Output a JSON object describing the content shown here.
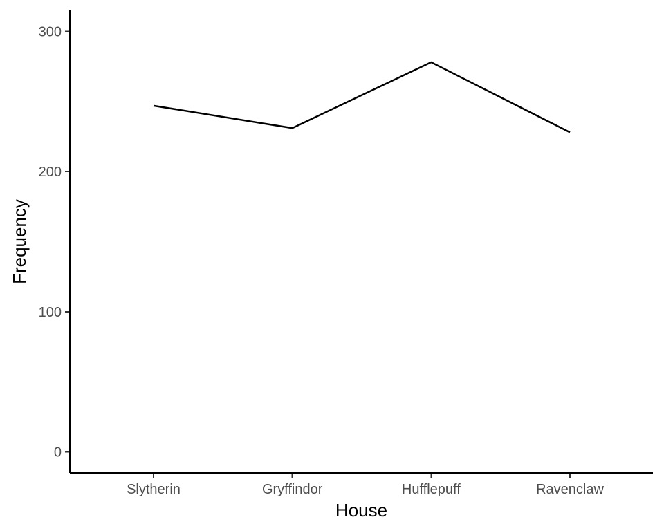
{
  "chart_data": {
    "type": "line",
    "title": "",
    "xlabel": "House",
    "ylabel": "Frequency",
    "categories": [
      "Slytherin",
      "Gryffindor",
      "Hufflepuff",
      "Ravenclaw"
    ],
    "values": [
      247,
      231,
      278,
      228
    ],
    "ylim": [
      -15,
      315
    ],
    "yticks": [
      0,
      100,
      200,
      300
    ],
    "grid": false,
    "legend": "none",
    "line_color": "#000000"
  }
}
